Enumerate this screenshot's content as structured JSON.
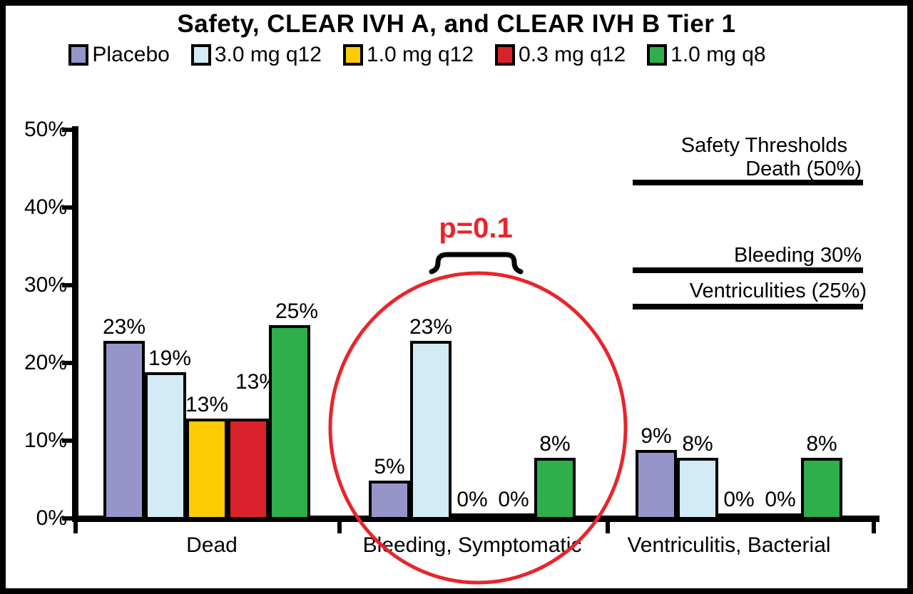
{
  "chart_data": {
    "type": "bar",
    "title": "Safety, CLEAR IVH A, and CLEAR IVH B Tier 1",
    "categories": [
      "Dead",
      "Bleeding, Symptomatic",
      "Ventriculitis, Bacterial"
    ],
    "series": [
      {
        "name": "Placebo",
        "color": "#9694C8",
        "values": [
          23,
          5,
          9
        ]
      },
      {
        "name": "3.0 mg q12",
        "color": "#D2EBF4",
        "values": [
          19,
          23,
          8
        ]
      },
      {
        "name": "1.0 mg q12",
        "color": "#FFCB05",
        "values": [
          13,
          0,
          0
        ]
      },
      {
        "name": "0.3 mg q12",
        "color": "#D92129",
        "values": [
          13,
          0,
          0
        ]
      },
      {
        "name": "1.0 mg q8",
        "color": "#2FAF4B",
        "values": [
          25,
          8,
          8
        ]
      }
    ],
    "value_label_format": "{v}%",
    "ylim": [
      0,
      50
    ],
    "yticks": [
      "0%",
      "10%",
      "20%",
      "30%",
      "40%",
      "50%"
    ],
    "grid": false,
    "legend_position": "top"
  },
  "annotations": {
    "p_value": "p=0.1",
    "accent_color": "#E8252B",
    "safety_thresholds": {
      "heading": "Safety Thresholds",
      "lines": [
        "Death (50%)",
        "Bleeding 30%",
        "Ventriculities (25%)"
      ]
    }
  }
}
